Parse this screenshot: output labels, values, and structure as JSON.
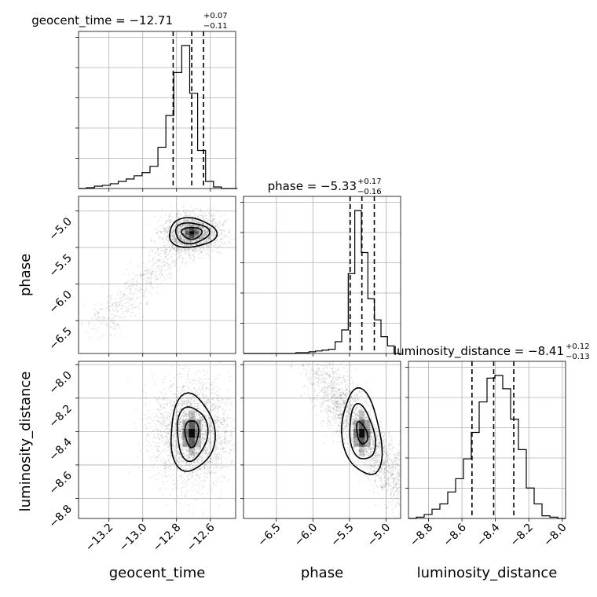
{
  "chart_data": {
    "type": "corner",
    "parameters": [
      {
        "name": "geocent_time",
        "label": "geocent_time",
        "median": "−12.71",
        "plus": "+0.07",
        "minus": "−0.11",
        "range": [
          -13.38,
          -12.45
        ],
        "ticks": [
          -13.2,
          -13.0,
          -12.8,
          -12.6
        ],
        "tick_labels": [
          "−13.2",
          "−13.0",
          "−12.8",
          "−12.6"
        ],
        "quantiles": [
          -12.82,
          -12.71,
          -12.64
        ]
      },
      {
        "name": "phase",
        "label": "phase",
        "median": "−5.33",
        "plus": "+0.17",
        "minus": "−0.16",
        "range": [
          -6.95,
          -4.8
        ],
        "ticks": [
          -6.5,
          -6.0,
          -5.5,
          -5.0
        ],
        "tick_labels": [
          "−6.5",
          "−6.0",
          "−5.5",
          "−5.0"
        ],
        "quantiles": [
          -5.49,
          -5.33,
          -5.16
        ]
      },
      {
        "name": "luminosity_distance",
        "label": "luminosity_distance",
        "median": "−8.41",
        "plus": "+0.12",
        "minus": "−0.13",
        "range": [
          -8.92,
          -7.98
        ],
        "ticks": [
          -8.8,
          -8.6,
          -8.4,
          -8.2,
          -8.0
        ],
        "tick_labels": [
          "−8.8",
          "−8.6",
          "−8.4",
          "−8.2",
          "−8.0"
        ],
        "quantiles": [
          -8.54,
          -8.41,
          -8.29
        ]
      }
    ],
    "titles": [
      {
        "main": "geocent_time = −12.71",
        "sup": "+0.07",
        "sub": "−0.11"
      },
      {
        "main": "phase = −5.33",
        "sup": "+0.17",
        "sub": "−0.16"
      },
      {
        "main": "luminosity_distance = −8.41",
        "sup": "+0.12",
        "sub": "−0.13"
      }
    ],
    "histograms": [
      {
        "param": "geocent_time",
        "counts": [
          0,
          1,
          3,
          4,
          6,
          9,
          12,
          16,
          20,
          28,
          52,
          92,
          146,
          180,
          120,
          48,
          9,
          2,
          0,
          0
        ]
      },
      {
        "param": "phase",
        "counts": [
          0,
          0,
          0,
          0,
          0,
          0,
          0,
          0,
          1,
          1,
          2,
          3,
          4,
          5,
          14,
          28,
          95,
          170,
          120,
          65,
          40,
          20,
          9,
          0
        ]
      },
      {
        "param": "luminosity_distance",
        "counts": [
          0,
          1,
          3,
          7,
          11,
          20,
          30,
          45,
          65,
          88,
          106,
          108,
          98,
          75,
          52,
          23,
          11,
          2,
          1,
          0
        ]
      }
    ],
    "hist_x_edges": {
      "geocent_time": [
        -13.38,
        -12.44
      ],
      "phase": [
        -6.95,
        -4.8
      ],
      "luminosity_distance": [
        -8.92,
        -7.98
      ]
    },
    "pairs": [
      {
        "x": "geocent_time",
        "y": "phase",
        "center": [
          -12.71,
          -5.3
        ],
        "spread": [
          0.06,
          0.1
        ],
        "tail": "lower-left",
        "contours": [
          [
            0.06,
            0.08
          ],
          [
            0.1,
            0.14
          ],
          [
            0.14,
            0.2
          ]
        ]
      },
      {
        "x": "geocent_time",
        "y": "luminosity_distance",
        "center": [
          -12.71,
          -8.41
        ],
        "spread": [
          0.08,
          0.12
        ],
        "tail": "none",
        "contours": [
          [
            0.04,
            0.08
          ],
          [
            0.09,
            0.16
          ],
          [
            0.13,
            0.23
          ]
        ]
      },
      {
        "x": "phase",
        "y": "luminosity_distance",
        "center": [
          -5.33,
          -8.41
        ],
        "spread": [
          0.17,
          0.12
        ],
        "tail": "diagonal",
        "contours": [
          [
            0.08,
            0.04
          ],
          [
            0.18,
            0.11
          ],
          [
            0.28,
            0.17
          ]
        ]
      }
    ],
    "quantile_levels": [
      0.16,
      0.5,
      0.84
    ],
    "grid": true
  },
  "axis_labels": {
    "x": [
      "geocent_time",
      "phase",
      "luminosity_distance"
    ],
    "y": [
      "phase",
      "luminosity_distance"
    ]
  }
}
